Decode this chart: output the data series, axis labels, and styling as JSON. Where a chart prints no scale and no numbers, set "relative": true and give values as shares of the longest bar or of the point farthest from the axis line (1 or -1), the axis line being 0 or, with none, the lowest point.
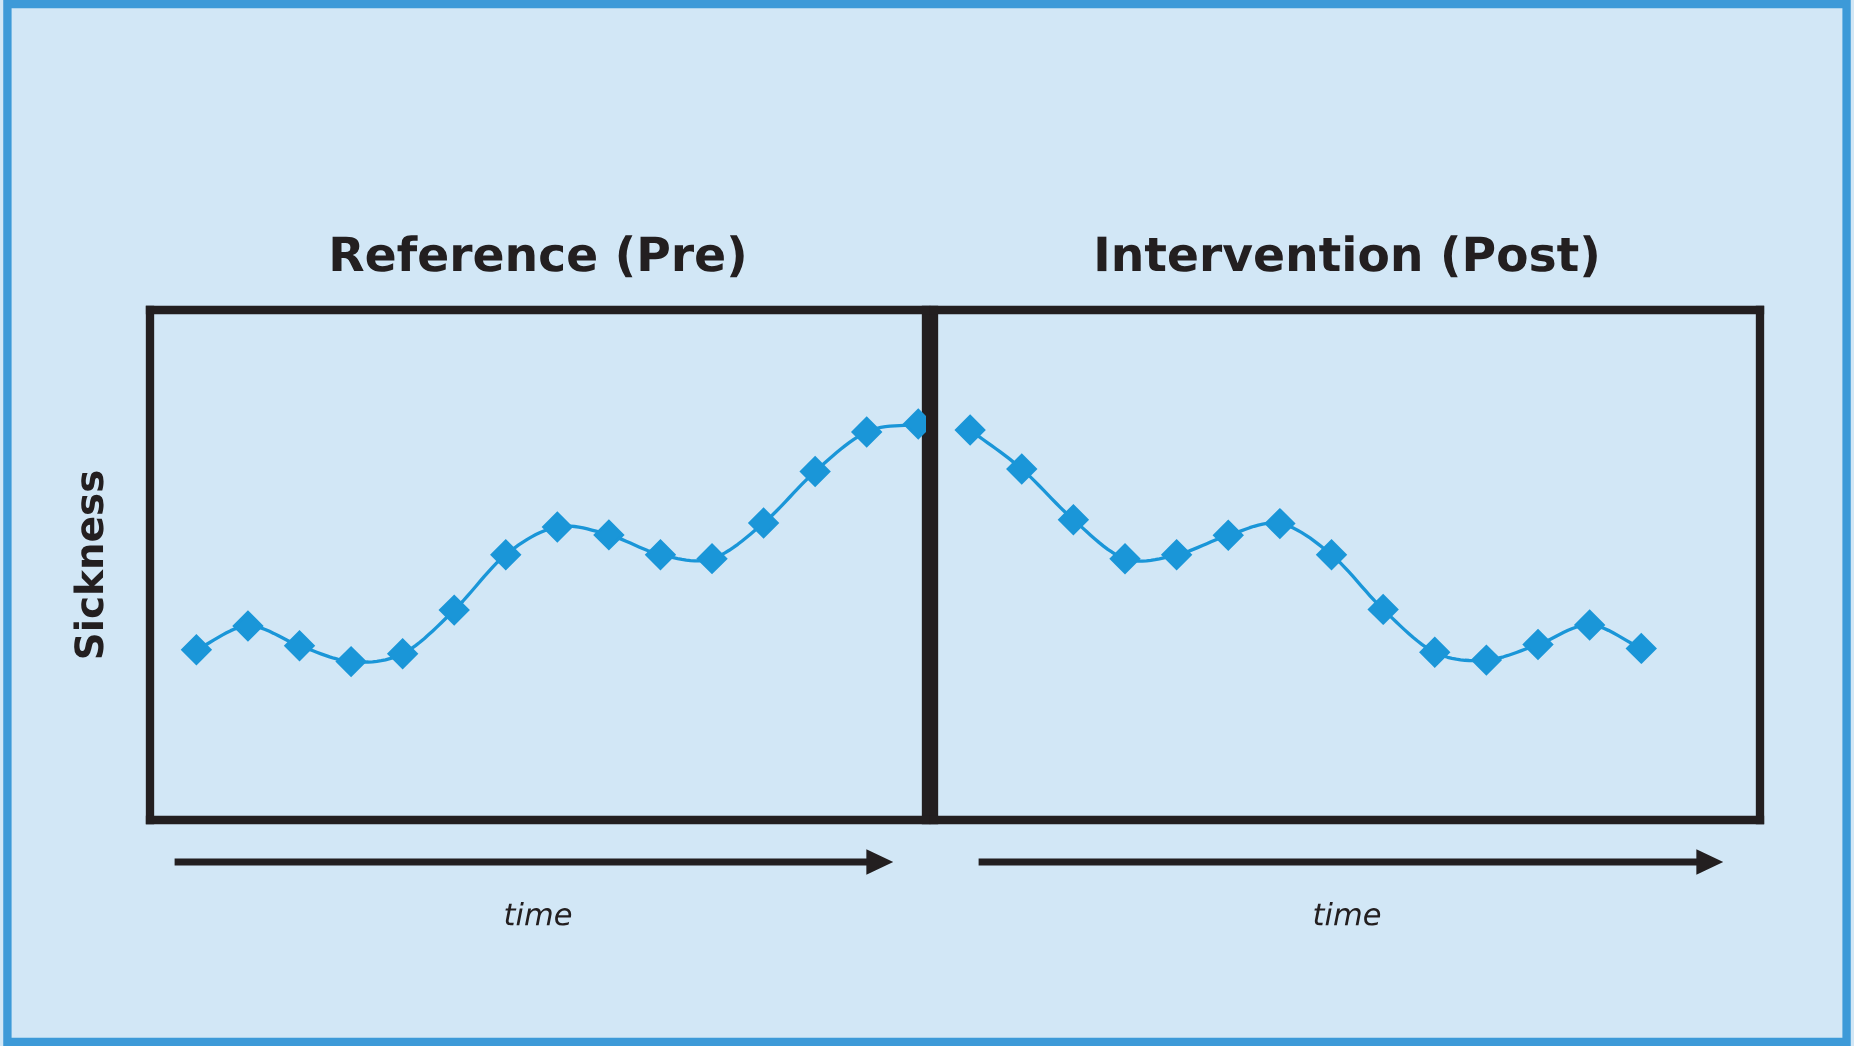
{
  "chart_data": [
    {
      "type": "line",
      "title": "Reference (Pre)",
      "xlabel": "time",
      "ylabel": "Sickness",
      "relative": true,
      "marker": "diamond",
      "line_style": "solid",
      "grid": false,
      "legend": false,
      "categories": [
        null,
        null,
        null,
        null,
        null,
        null,
        null,
        null,
        null,
        null,
        null,
        null,
        null,
        null,
        null
      ],
      "series": [
        {
          "color": "#1a96d8",
          "values": [
            0.43,
            0.49,
            0.44,
            0.4,
            0.42,
            0.53,
            0.67,
            0.74,
            0.72,
            0.67,
            0.66,
            0.75,
            0.88,
            0.98,
            1.0
          ]
        }
      ]
    },
    {
      "type": "line",
      "title": "Intervention (Post)",
      "xlabel": "time",
      "relative": true,
      "marker": "diamond",
      "line_style": "solid",
      "grid": false,
      "legend": false,
      "categories": [
        null,
        null,
        null,
        null,
        null,
        null,
        null,
        null,
        null,
        null,
        null,
        null,
        null,
        null
      ],
      "series": [
        {
          "color": "#1a96d8",
          "values": [
            1.0,
            0.9,
            0.77,
            0.67,
            0.68,
            0.73,
            0.76,
            0.68,
            0.54,
            0.43,
            0.41,
            0.45,
            0.5,
            0.44
          ]
        }
      ]
    }
  ]
}
